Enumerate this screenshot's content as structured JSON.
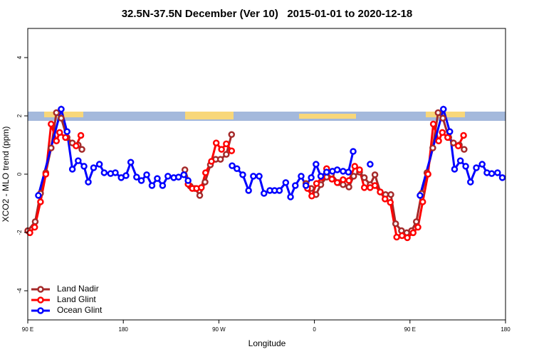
{
  "chart_data": {
    "type": "line",
    "title": "32.5N-37.5N December (Ver 10)   2015-01-01 to 2020-12-18",
    "xlabel": "Longitude",
    "ylabel": "XCO2 - MLO trend (ppm)",
    "xlim": [
      90,
      540
    ],
    "ylim": [
      -5,
      5
    ],
    "xticks": [
      {
        "value": 90,
        "label": "90 E"
      },
      180,
      {
        "value": 270,
        "label": "90 W"
      },
      {
        "value": 360,
        "label": "0"
      },
      {
        "value": 450,
        "label": "90 E"
      },
      {
        "value": 540,
        "label": "180"
      }
    ],
    "yticks": [
      -4,
      -2,
      0,
      2,
      4
    ],
    "legend": "bottom-left",
    "series": [
      {
        "name": "Land Nadir",
        "color": "#a52a2a",
        "x": [
          90,
          97,
          102,
          107,
          112,
          117,
          121.5,
          127,
          132,
          137.5,
          141,
          null,
          238,
          243,
          247.5,
          252,
          257,
          262,
          267,
          271.5,
          277,
          282,
          null,
          352,
          357,
          361.5,
          366,
          371.5,
          376,
          382.5,
          387,
          392.5,
          397,
          402.5,
          407,
          412.5,
          417,
          422,
          427,
          432,
          436.5,
          442,
          447,
          451.5,
          456,
          461,
          466,
          471.5,
          476.5,
          481,
          486.5,
          491,
          496.5,
          501
        ],
        "values": [
          -1.94,
          -1.63,
          -0.66,
          0.05,
          0.9,
          2.11,
          1.92,
          1.26,
          1.07,
          1.0,
          0.85,
          null,
          0.15,
          -0.41,
          -0.49,
          -0.73,
          -0.27,
          0.32,
          0.51,
          0.51,
          0.68,
          1.36,
          null,
          -0.32,
          -0.49,
          -0.7,
          -0.36,
          -0.1,
          0,
          -0.29,
          -0.36,
          -0.44,
          -0.07,
          0.07,
          -0.12,
          -0.36,
          -0.02,
          -0.61,
          -0.7,
          -0.7,
          -1.7,
          -1.94,
          -2.01,
          -1.94,
          -1.63,
          -0.66,
          0.05,
          0.9,
          2.11,
          1.92,
          1.26,
          1.07,
          1.0,
          0.85
        ]
      },
      {
        "name": "Land Glint",
        "color": "#ff0000",
        "x": [
          92,
          96.5,
          102,
          107,
          112,
          117,
          120,
          125.5,
          135.5,
          140,
          null,
          241,
          245,
          249,
          253.5,
          257.5,
          263,
          267.5,
          272.5,
          277,
          282,
          null,
          353.5,
          357.5,
          362,
          367,
          371.5,
          376.5,
          381.5,
          387,
          392.5,
          398,
          402.5,
          407,
          412.5,
          417,
          422,
          426.5,
          431.5,
          437.5,
          442.5,
          447.5,
          453,
          457.5,
          462,
          467,
          472,
          477,
          480.5,
          485.5,
          495.5,
          500.5
        ],
        "values": [
          -2.01,
          -1.82,
          -0.95,
          0,
          1.72,
          1.14,
          1.43,
          1.26,
          0.97,
          1.33,
          null,
          -0.34,
          -0.49,
          -0.49,
          -0.46,
          0.05,
          0.44,
          1.07,
          0.85,
          1.04,
          0.8,
          null,
          -0.49,
          -0.75,
          -0.32,
          -0.12,
          0.19,
          -0.17,
          -0.29,
          -0.19,
          -0.22,
          0.27,
          0.15,
          -0.46,
          -0.46,
          -0.39,
          -0.61,
          -0.85,
          -0.97,
          -2.16,
          -2.11,
          -2.18,
          -2.01,
          -1.82,
          -0.95,
          0,
          1.72,
          1.14,
          1.43,
          1.26,
          0.97,
          1.33
        ]
      },
      {
        "name": "Ocean Glint",
        "color": "#0000ff",
        "x": [
          100,
          121.5,
          127,
          132,
          137.5,
          143,
          147,
          152,
          157.5,
          162,
          168,
          172.5,
          178,
          182.5,
          187,
          192.5,
          197,
          202,
          207,
          212,
          217,
          222,
          227.5,
          232,
          237,
          241,
          null,
          282.5,
          287,
          292.5,
          298,
          302.5,
          308,
          312.5,
          318,
          322.5,
          327,
          333,
          337.5,
          342,
          347.5,
          352,
          357,
          361.5,
          366,
          371.5,
          377,
          381.5,
          387,
          392,
          396.5,
          null,
          412.5,
          null,
          459.5,
          481.5,
          487.5,
          492,
          497.5,
          502.5,
          507,
          512.5,
          518,
          522.5,
          527,
          532.5,
          537
        ],
        "values": [
          -0.73,
          2.23,
          1.46,
          0.17,
          0.46,
          0.27,
          -0.27,
          0.22,
          0.34,
          0.05,
          0.02,
          0.05,
          -0.12,
          -0.05,
          0.41,
          -0.1,
          -0.22,
          -0.02,
          -0.39,
          -0.15,
          -0.39,
          -0.07,
          -0.12,
          -0.1,
          -0.02,
          -0.22,
          null,
          0.29,
          0.19,
          -0.02,
          -0.56,
          -0.07,
          -0.07,
          -0.66,
          -0.56,
          -0.56,
          -0.56,
          -0.29,
          -0.78,
          -0.39,
          -0.07,
          -0.39,
          -0.12,
          0.34,
          -0.07,
          0.07,
          0.1,
          0.15,
          0.1,
          0.07,
          0.78,
          null,
          0.34,
          null,
          -0.73,
          2.23,
          1.46,
          0.17,
          0.46,
          0.27,
          -0.27,
          0.22,
          0.34,
          0.05,
          0.02,
          0.05,
          -0.12
        ]
      }
    ]
  }
}
